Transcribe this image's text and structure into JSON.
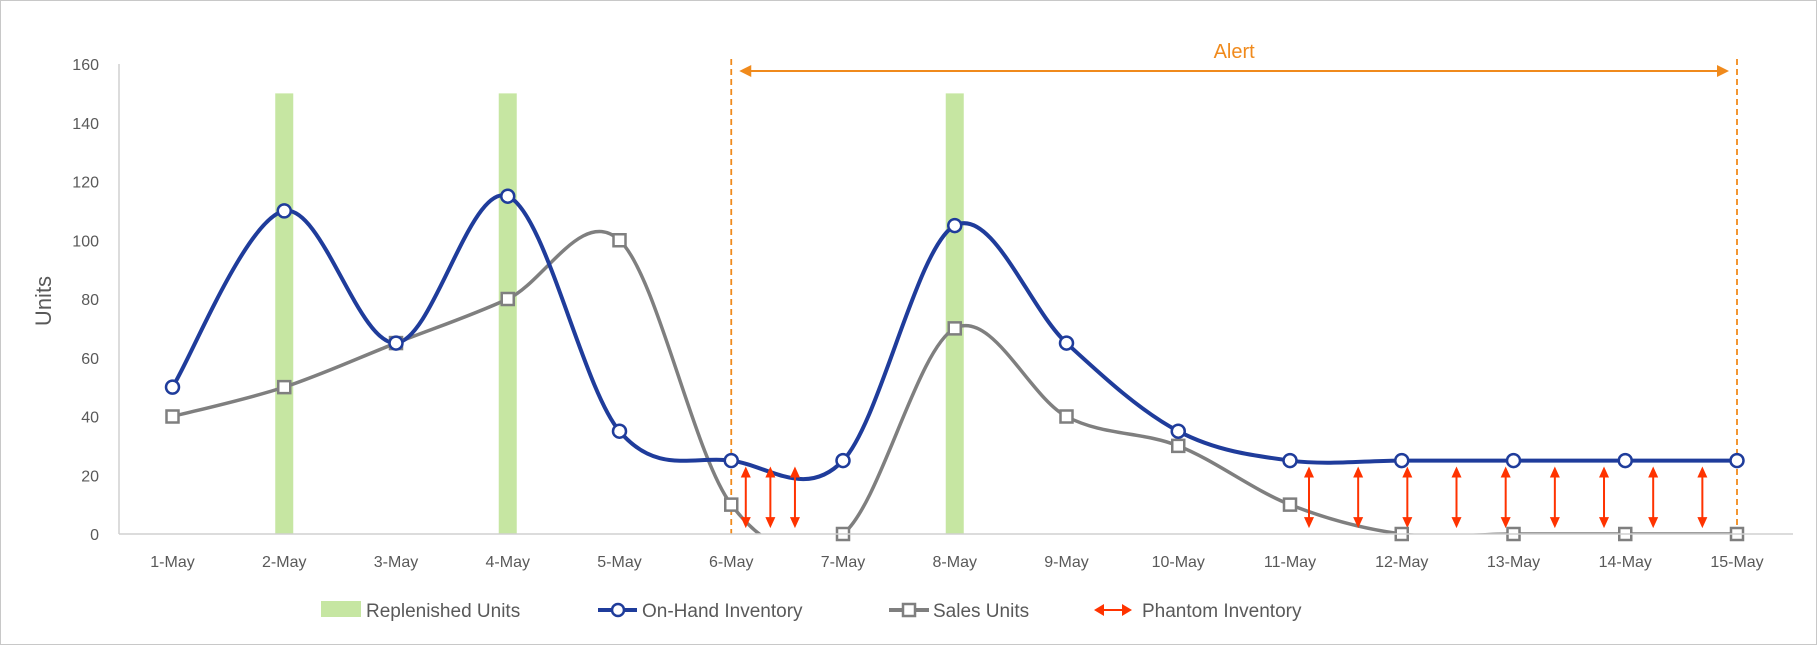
{
  "chart_data": {
    "type": "line",
    "title": "",
    "xlabel": "",
    "ylabel": "Units",
    "ylim": [
      0,
      160
    ],
    "yticks": [
      0,
      20,
      40,
      60,
      80,
      100,
      120,
      140,
      160
    ],
    "categories": [
      "1-May",
      "2-May",
      "3-May",
      "4-May",
      "5-May",
      "6-May",
      "7-May",
      "8-May",
      "9-May",
      "10-May",
      "11-May",
      "12-May",
      "13-May",
      "14-May",
      "15-May"
    ],
    "grid": false,
    "legend_position": "bottom",
    "series": [
      {
        "name": "Replenished Units",
        "kind": "bar",
        "color": "#c6e6a2",
        "values": [
          null,
          150,
          null,
          150,
          null,
          null,
          null,
          150,
          null,
          null,
          null,
          null,
          null,
          null,
          null
        ]
      },
      {
        "name": "On-Hand Inventory",
        "kind": "smooth-line",
        "marker": "circle",
        "color": "#1f3c9b",
        "values": [
          50,
          110,
          65,
          115,
          35,
          25,
          25,
          105,
          65,
          35,
          25,
          25,
          25,
          25,
          25
        ]
      },
      {
        "name": "Sales Units",
        "kind": "smooth-line",
        "marker": "square",
        "color": "#7f7f7f",
        "values": [
          40,
          50,
          65,
          80,
          100,
          10,
          0,
          70,
          40,
          30,
          10,
          0,
          0,
          0,
          0
        ]
      },
      {
        "name": "Phantom Inventory",
        "kind": "double-arrow",
        "color": "#ff3300"
      }
    ],
    "annotations": {
      "alert": {
        "label": "Alert",
        "from": "6-May",
        "to": "15-May",
        "color": "#f08a1c"
      }
    }
  }
}
